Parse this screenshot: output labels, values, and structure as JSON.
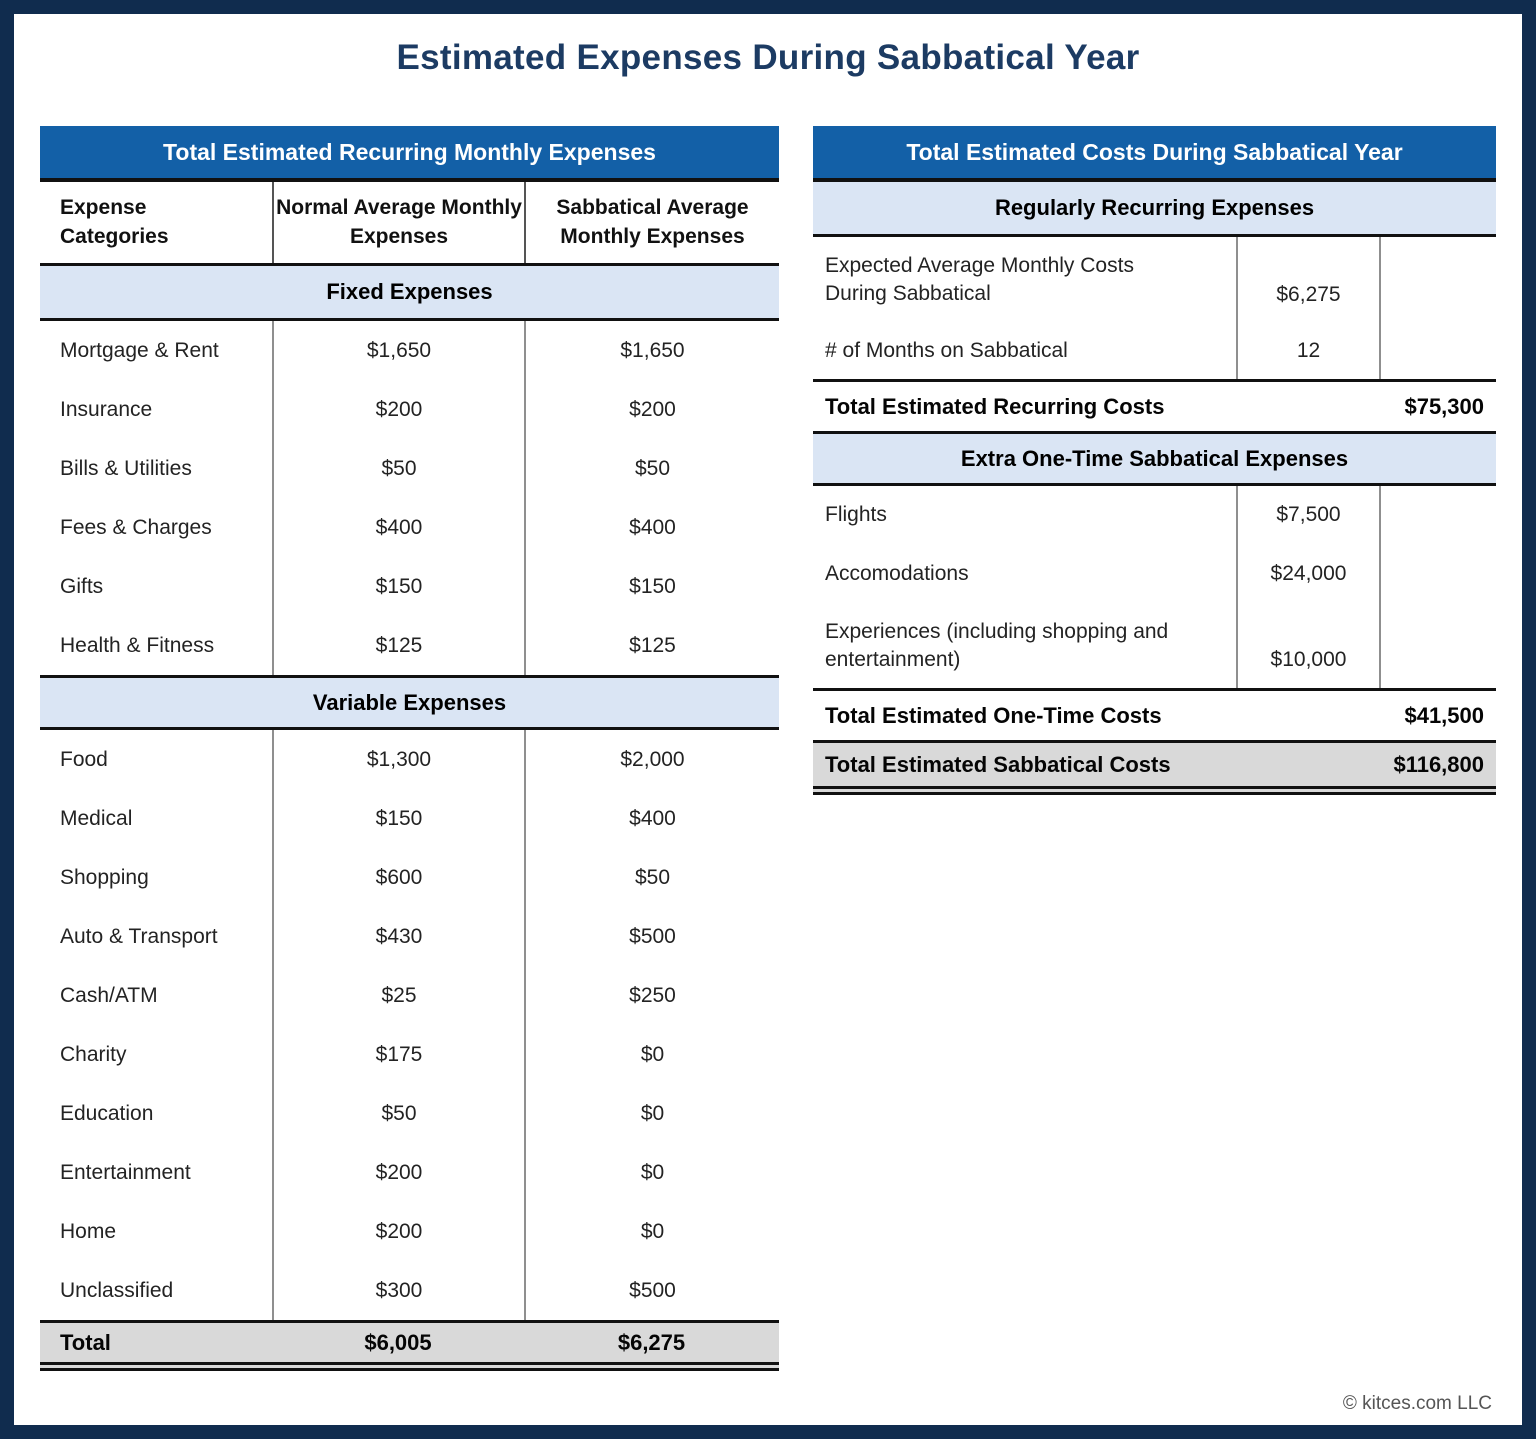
{
  "page": {
    "title": "Estimated Expenses During Sabbatical Year",
    "footer": "© kitces.com LLC"
  },
  "colors": {
    "header_blue": "#1360a7",
    "section_light_blue": "#dae5f4",
    "total_gray": "#d9d9d9",
    "navy_border": "#102c4e",
    "title_navy": "#1c3b63"
  },
  "chart_data": [
    {
      "type": "table",
      "title": "Total Estimated Recurring Monthly Expenses",
      "columns": [
        "Expense Categories",
        "Normal Average Monthly Expenses",
        "Sabbatical Average Monthly Expenses"
      ],
      "sections": [
        {
          "label": "Fixed Expenses",
          "rows": [
            [
              "Mortgage & Rent",
              "$1,650",
              "$1,650"
            ],
            [
              "Insurance",
              "$200",
              "$200"
            ],
            [
              "Bills & Utilities",
              "$50",
              "$50"
            ],
            [
              "Fees & Charges",
              "$400",
              "$400"
            ],
            [
              "Gifts",
              "$150",
              "$150"
            ],
            [
              "Health & Fitness",
              "$125",
              "$125"
            ]
          ]
        },
        {
          "label": "Variable Expenses",
          "rows": [
            [
              "Food",
              "$1,300",
              "$2,000"
            ],
            [
              "Medical",
              "$150",
              "$400"
            ],
            [
              "Shopping",
              "$600",
              "$50"
            ],
            [
              "Auto & Transport",
              "$430",
              "$500"
            ],
            [
              "Cash/ATM",
              "$25",
              "$250"
            ],
            [
              "Charity",
              "$175",
              "$0"
            ],
            [
              "Education",
              "$50",
              "$0"
            ],
            [
              "Entertainment",
              "$200",
              "$0"
            ],
            [
              "Home",
              "$200",
              "$0"
            ],
            [
              "Unclassified",
              "$300",
              "$500"
            ]
          ]
        }
      ],
      "total_row": [
        "Total",
        "$6,005",
        "$6,275"
      ]
    },
    {
      "type": "table",
      "title": "Total Estimated Costs During Sabbatical Year",
      "sections": [
        {
          "label": "Regularly Recurring Expenses",
          "rows": [
            {
              "label": "Expected Average Monthly Costs During Sabbatical",
              "value": "$6,275"
            },
            {
              "label": "# of Months on Sabbatical",
              "value": "12"
            }
          ],
          "total": {
            "label": "Total Estimated Recurring Costs",
            "value": "$75,300"
          }
        },
        {
          "label": "Extra One-Time Sabbatical Expenses",
          "rows": [
            {
              "label": "Flights",
              "value": "$7,500"
            },
            {
              "label": "Accomodations",
              "value": "$24,000"
            },
            {
              "label": "Experiences (including shopping and entertainment)",
              "value": "$10,000"
            }
          ],
          "total": {
            "label": "Total Estimated One-Time Costs",
            "value": "$41,500"
          }
        }
      ],
      "grand_total": {
        "label": "Total Estimated Sabbatical Costs",
        "value": "$116,800"
      }
    }
  ]
}
